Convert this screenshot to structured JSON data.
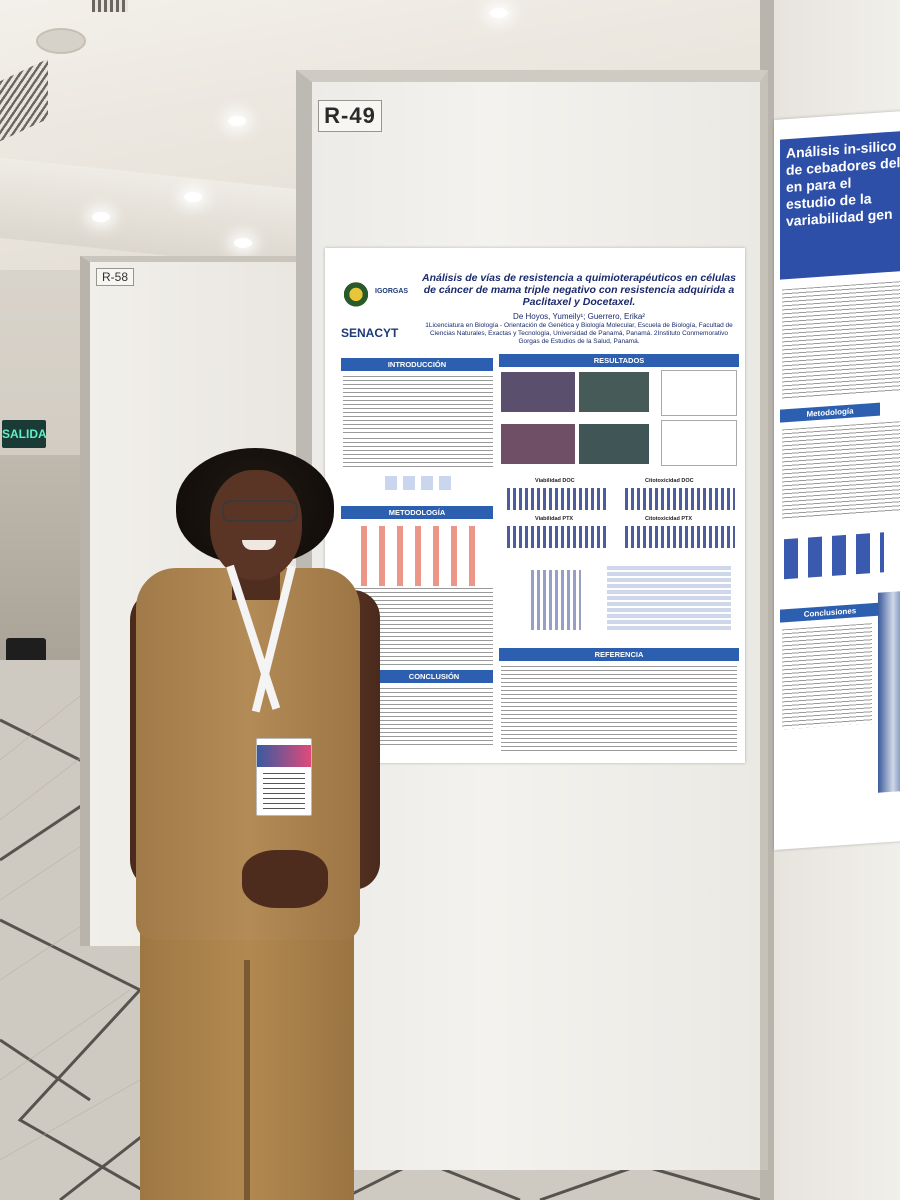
{
  "scene": {
    "exit_sign": "SALIDA",
    "board_labels": {
      "main": "R-49",
      "left": "R-58"
    }
  },
  "poster_main": {
    "title": "Análisis de vías de resistencia a quimioterapéuticos en células de cáncer de mama triple negativo con resistencia adquirida a Paclitaxel y Docetaxel.",
    "authors": "De Hoyos, Yumeily¹; Guerrero, Erika²",
    "affiliations": "1Licenciatura en Biología - Orientación de Genética y Biología Molecular, Escuela de Biología, Facultad de Ciencias Naturales, Exactas y Tecnología, Universidad de Panamá, Panamá. 2Instituto Conmemorativo Gorgas de Estudios de la Salud, Panamá.",
    "logos": {
      "igorgas": "IGORGAS",
      "senacyt": "SENACYT"
    },
    "sections": {
      "intro": "INTRODUCCIÓN",
      "results": "RESULTADOS",
      "methods": "METODOLOGÍA",
      "conclusion": "CONCLUSIÓN",
      "references": "REFERENCIA"
    },
    "result_labels": {
      "viab_doc": "Viabilidad DOC",
      "cito_doc": "Citotoxicidad DOC",
      "viab_ptx": "Viabilidad PTX",
      "cito_ptx": "Citotoxicidad PTX"
    }
  },
  "poster_right": {
    "title": "Análisis in-silico de cebadores del en para el estudio de la variabilidad gen",
    "sections": {
      "methods": "Metodología",
      "conclusions": "Conclusiones"
    }
  },
  "colors": {
    "poster_blue": "#2d5fb0",
    "title_navy": "#1a2a6b",
    "outfit_tan": "#b08a55"
  }
}
